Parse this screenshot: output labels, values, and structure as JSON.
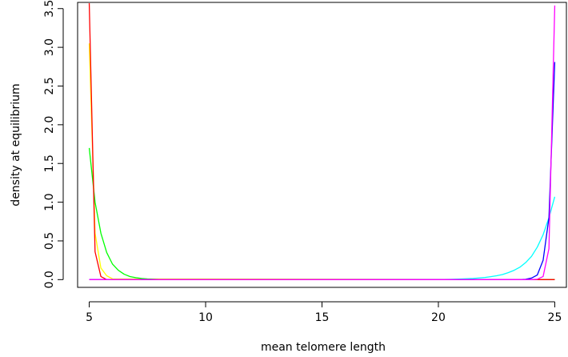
{
  "chart_data": {
    "type": "line",
    "title": "",
    "xlabel": "mean telomere length",
    "ylabel": "density at equilibrium",
    "xlim": [
      4.5,
      25.5
    ],
    "ylim": [
      -0.1,
      3.58
    ],
    "x_ticks": [
      5,
      10,
      15,
      20,
      25
    ],
    "x_tick_labels": [
      "5",
      "10",
      "15",
      "20",
      "25"
    ],
    "y_ticks": [
      0.0,
      0.5,
      1.0,
      1.5,
      2.0,
      2.5,
      3.0,
      3.5
    ],
    "y_tick_labels": [
      "0.0",
      "0.5",
      "1.0",
      "1.5",
      "2.0",
      "2.5",
      "3.0",
      "3.5"
    ],
    "grid": false,
    "legend": "none",
    "series": [
      {
        "color": "#ffff00",
        "x": [
          5,
          5.25,
          5.5,
          5.75,
          6,
          25
        ],
        "y": [
          3.05,
          0.6,
          0.15,
          0.05,
          0.01,
          0
        ]
      },
      {
        "color": "#00ff00",
        "x": [
          5,
          5.25,
          5.5,
          5.75,
          6,
          6.25,
          6.5,
          6.75,
          7,
          7.25,
          7.5,
          8,
          8.5,
          25
        ],
        "y": [
          1.7,
          1.0,
          0.6,
          0.35,
          0.2,
          0.12,
          0.07,
          0.04,
          0.025,
          0.015,
          0.008,
          0.002,
          0,
          0
        ]
      },
      {
        "color": "#ff0000",
        "x": [
          5,
          5.25,
          5.5,
          5.75,
          25
        ],
        "y": [
          3.57,
          0.36,
          0.04,
          0,
          0
        ]
      },
      {
        "color": "#00ffff",
        "x": [
          5,
          20,
          20.5,
          21,
          21.5,
          22,
          22.25,
          22.5,
          22.75,
          23,
          23.25,
          23.5,
          23.75,
          24,
          24.25,
          24.5,
          24.75,
          25
        ],
        "y": [
          0,
          0,
          0.003,
          0.008,
          0.015,
          0.028,
          0.038,
          0.05,
          0.065,
          0.09,
          0.12,
          0.16,
          0.22,
          0.3,
          0.42,
          0.58,
          0.8,
          1.07
        ]
      },
      {
        "color": "#0000ff",
        "x": [
          5,
          23.5,
          23.75,
          24,
          24.25,
          24.5,
          24.75,
          25
        ],
        "y": [
          0,
          0,
          0.005,
          0.02,
          0.06,
          0.25,
          0.8,
          2.81
        ]
      },
      {
        "color": "#ff00ff",
        "x": [
          5,
          24,
          24.25,
          24.5,
          24.75,
          25
        ],
        "y": [
          0,
          0,
          0.005,
          0.04,
          0.4,
          3.54
        ]
      }
    ]
  }
}
